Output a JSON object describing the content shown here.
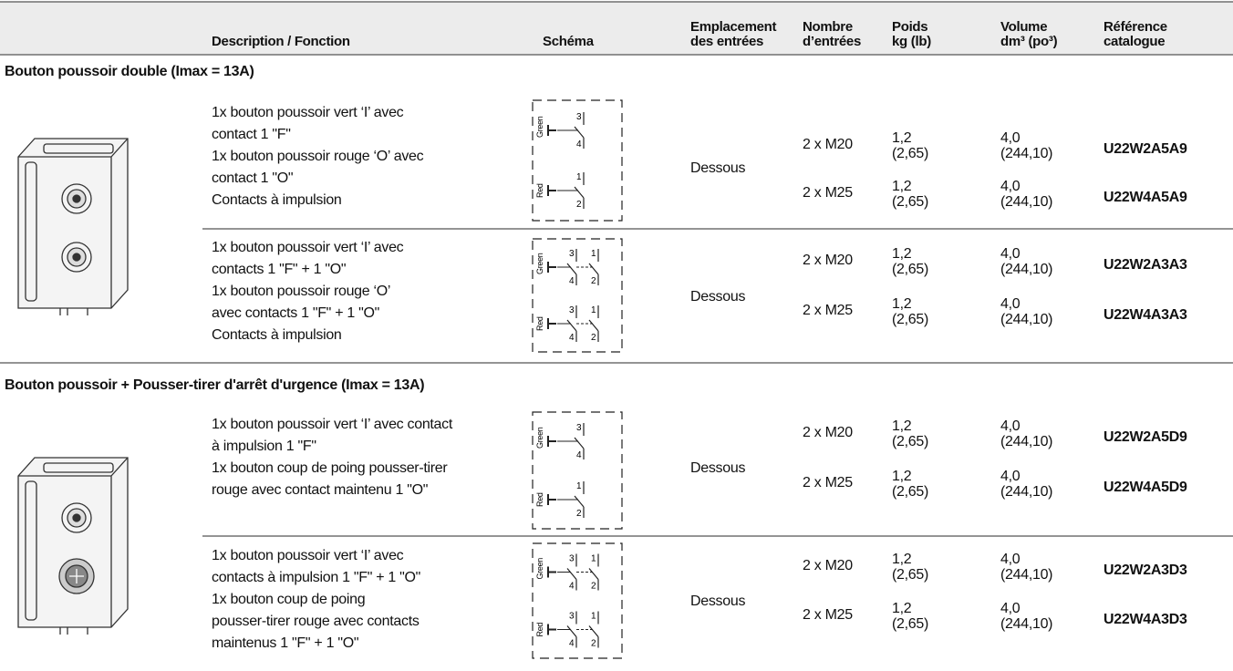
{
  "header": {
    "columns": [
      [
        "Description / Fonction"
      ],
      [
        "Schéma"
      ],
      [
        "Emplacement",
        "des entrées"
      ],
      [
        "Nombre",
        "d’entrées"
      ],
      [
        "Poids",
        "kg (lb)"
      ],
      [
        "Volume",
        "dm³ (po³)"
      ],
      [
        "Référence",
        "catalogue"
      ]
    ]
  },
  "sections": [
    {
      "title": "Bouton poussoir double (Imax = 13A)",
      "groups": [
        {
          "description": [
            "1x bouton poussoir vert ‘I’ avec",
            "contact 1 \"F\"",
            "1x bouton poussoir rouge ‘O’ avec",
            "contact 1 \"O\"",
            "Contacts à impulsion"
          ],
          "schema": [
            {
              "label": "Green",
              "contacts": [
                [
                  "3",
                  "4"
                ]
              ]
            },
            {
              "label": "Red",
              "contacts": [
                [
                  "1",
                  "2"
                ]
              ]
            }
          ],
          "location": "Dessous",
          "rows": [
            {
              "entries": "2 x M20",
              "weight": [
                "1,2",
                "(2,65)"
              ],
              "volume": [
                "4,0",
                "(244,10)"
              ],
              "reference": "U22W2A5A9"
            },
            {
              "entries": "2 x M25",
              "weight": [
                "1,2",
                "(2,65)"
              ],
              "volume": [
                "4,0",
                "(244,10)"
              ],
              "reference": "U22W4A5A9"
            }
          ]
        },
        {
          "description": [
            "1x bouton poussoir vert ‘I’ avec",
            "contacts 1 \"F\" + 1 \"O\"",
            "1x bouton poussoir rouge ‘O’",
            "avec contacts 1 \"F\" + 1 \"O\"",
            "Contacts à impulsion"
          ],
          "schema": [
            {
              "label": "Green",
              "contacts": [
                [
                  "3",
                  "4"
                ],
                [
                  "1",
                  "2"
                ]
              ]
            },
            {
              "label": "Red",
              "contacts": [
                [
                  "3",
                  "4"
                ],
                [
                  "1",
                  "2"
                ]
              ]
            }
          ],
          "location": "Dessous",
          "rows": [
            {
              "entries": "2 x M20",
              "weight": [
                "1,2",
                "(2,65)"
              ],
              "volume": [
                "4,0",
                "(244,10)"
              ],
              "reference": "U22W2A3A3"
            },
            {
              "entries": "2 x M25",
              "weight": [
                "1,2",
                "(2,65)"
              ],
              "volume": [
                "4,0",
                "(244,10)"
              ],
              "reference": "U22W4A3A3"
            }
          ]
        }
      ]
    },
    {
      "title": "Bouton poussoir + Pousser-tirer d'arrêt d'urgence (Imax = 13A)",
      "groups": [
        {
          "description": [
            "1x bouton poussoir vert ‘I’ avec contact",
            "à impulsion 1 \"F\"",
            "1x bouton coup de poing pousser-tirer",
            "rouge avec contact maintenu 1 \"O\""
          ],
          "schema": [
            {
              "label": "Green",
              "contacts": [
                [
                  "3",
                  "4"
                ]
              ]
            },
            {
              "label": "Red",
              "contacts": [
                [
                  "1",
                  "2"
                ]
              ]
            }
          ],
          "location": "Dessous",
          "rows": [
            {
              "entries": "2 x M20",
              "weight": [
                "1,2",
                "(2,65)"
              ],
              "volume": [
                "4,0",
                "(244,10)"
              ],
              "reference": "U22W2A5D9"
            },
            {
              "entries": "2 x M25",
              "weight": [
                "1,2",
                "(2,65)"
              ],
              "volume": [
                "4,0",
                "(244,10)"
              ],
              "reference": "U22W4A5D9"
            }
          ]
        },
        {
          "description": [
            "1x bouton poussoir vert ‘I’ avec",
            "contacts à impulsion 1 \"F\" + 1 \"O\"",
            "1x bouton coup de poing",
            "pousser-tirer rouge avec contacts",
            "maintenus 1 \"F\" + 1 \"O\""
          ],
          "schema": [
            {
              "label": "Green",
              "contacts": [
                [
                  "3",
                  "4"
                ],
                [
                  "1",
                  "2"
                ]
              ]
            },
            {
              "label": "Red",
              "contacts": [
                [
                  "3",
                  "4"
                ],
                [
                  "1",
                  "2"
                ]
              ]
            }
          ],
          "location": "Dessous",
          "rows": [
            {
              "entries": "2 x M20",
              "weight": [
                "1,2",
                "(2,65)"
              ],
              "volume": [
                "4,0",
                "(244,10)"
              ],
              "reference": "U22W2A3D3"
            },
            {
              "entries": "2 x M25",
              "weight": [
                "1,2",
                "(2,65)"
              ],
              "volume": [
                "4,0",
                "(244,10)"
              ],
              "reference": "U22W4A3D3"
            }
          ]
        }
      ]
    }
  ]
}
